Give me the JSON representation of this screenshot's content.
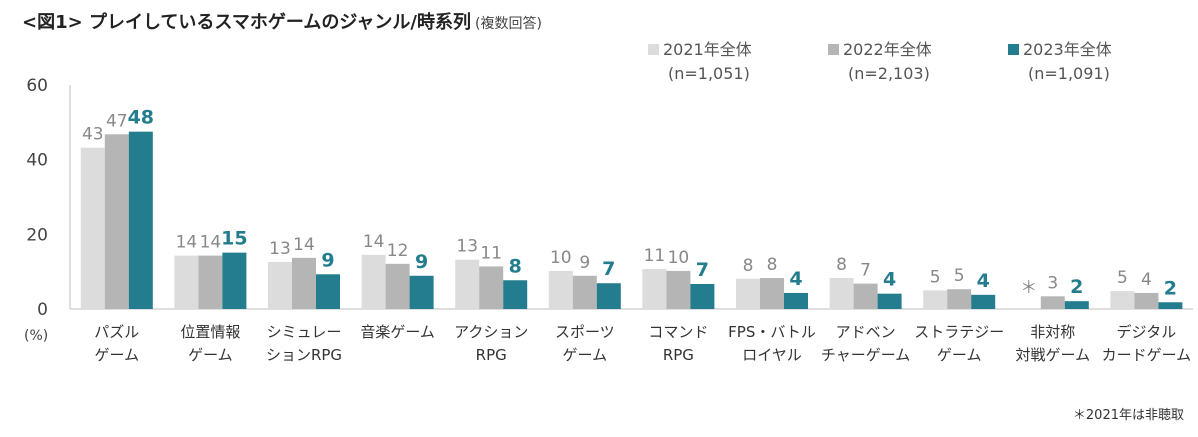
{
  "title": "<図1> プレイしているスマホゲームのジャンル/時系列",
  "subtitle": "(複数回答)",
  "footnote": "＊2021年は非聴取",
  "colors": {
    "s2021": "#dcdcdc",
    "s2022": "#b5b5b5",
    "s2023": "#237d8e"
  },
  "legend": [
    {
      "label": "2021年全体",
      "n": "(n=1,051)",
      "color": "#dcdcdc"
    },
    {
      "label": "2022年全体",
      "n": "(n=2,103)",
      "color": "#b5b5b5"
    },
    {
      "label": "2023年全体",
      "n": "(n=1,091)",
      "color": "#237d8e"
    }
  ],
  "chart_data": {
    "type": "bar",
    "title": "プレイしているスマホゲームのジャンル/時系列",
    "ylabel": "(%)",
    "ylim": [
      0,
      60
    ],
    "yticks": [
      0,
      20,
      40,
      60
    ],
    "categories": [
      [
        "パズル",
        "ゲーム"
      ],
      [
        "位置情報",
        "ゲーム"
      ],
      [
        "シミュレー",
        "ションRPG"
      ],
      [
        "音楽ゲーム"
      ],
      [
        "アクション",
        "RPG"
      ],
      [
        "スポーツ",
        "ゲーム"
      ],
      [
        "コマンド",
        "RPG"
      ],
      [
        "FPS・バトル",
        "ロイヤル"
      ],
      [
        "アドベン",
        "チャーゲーム"
      ],
      [
        "ストラテジー",
        "ゲーム"
      ],
      [
        "非対称",
        "対戦ゲーム"
      ],
      [
        "デジタル",
        "カードゲーム"
      ]
    ],
    "series": [
      {
        "name": "2021年全体",
        "values": [
          43.2,
          14.3,
          12.6,
          14.5,
          13.2,
          10.2,
          10.7,
          8.1,
          8.3,
          5.0,
          null,
          4.8
        ],
        "labels": [
          "43",
          "14",
          "13",
          "14",
          "13",
          "10",
          "11",
          "8",
          "8",
          "5",
          "＊",
          "5"
        ]
      },
      {
        "name": "2022年全体",
        "values": [
          46.8,
          14.3,
          13.7,
          12.1,
          11.4,
          8.9,
          10.2,
          8.3,
          6.8,
          5.3,
          3.4,
          4.3
        ],
        "labels": [
          "47",
          "14",
          "14",
          "12",
          "11",
          "9",
          "10",
          "8",
          "7",
          "5",
          "3",
          "4"
        ]
      },
      {
        "name": "2023年全体",
        "values": [
          47.5,
          15.1,
          9.3,
          8.9,
          7.7,
          6.9,
          6.7,
          4.3,
          4.1,
          3.8,
          2.1,
          1.8
        ],
        "labels": [
          "48",
          "15",
          "9",
          "9",
          "8",
          "7",
          "7",
          "4",
          "4",
          "4",
          "2",
          "2"
        ]
      }
    ]
  }
}
